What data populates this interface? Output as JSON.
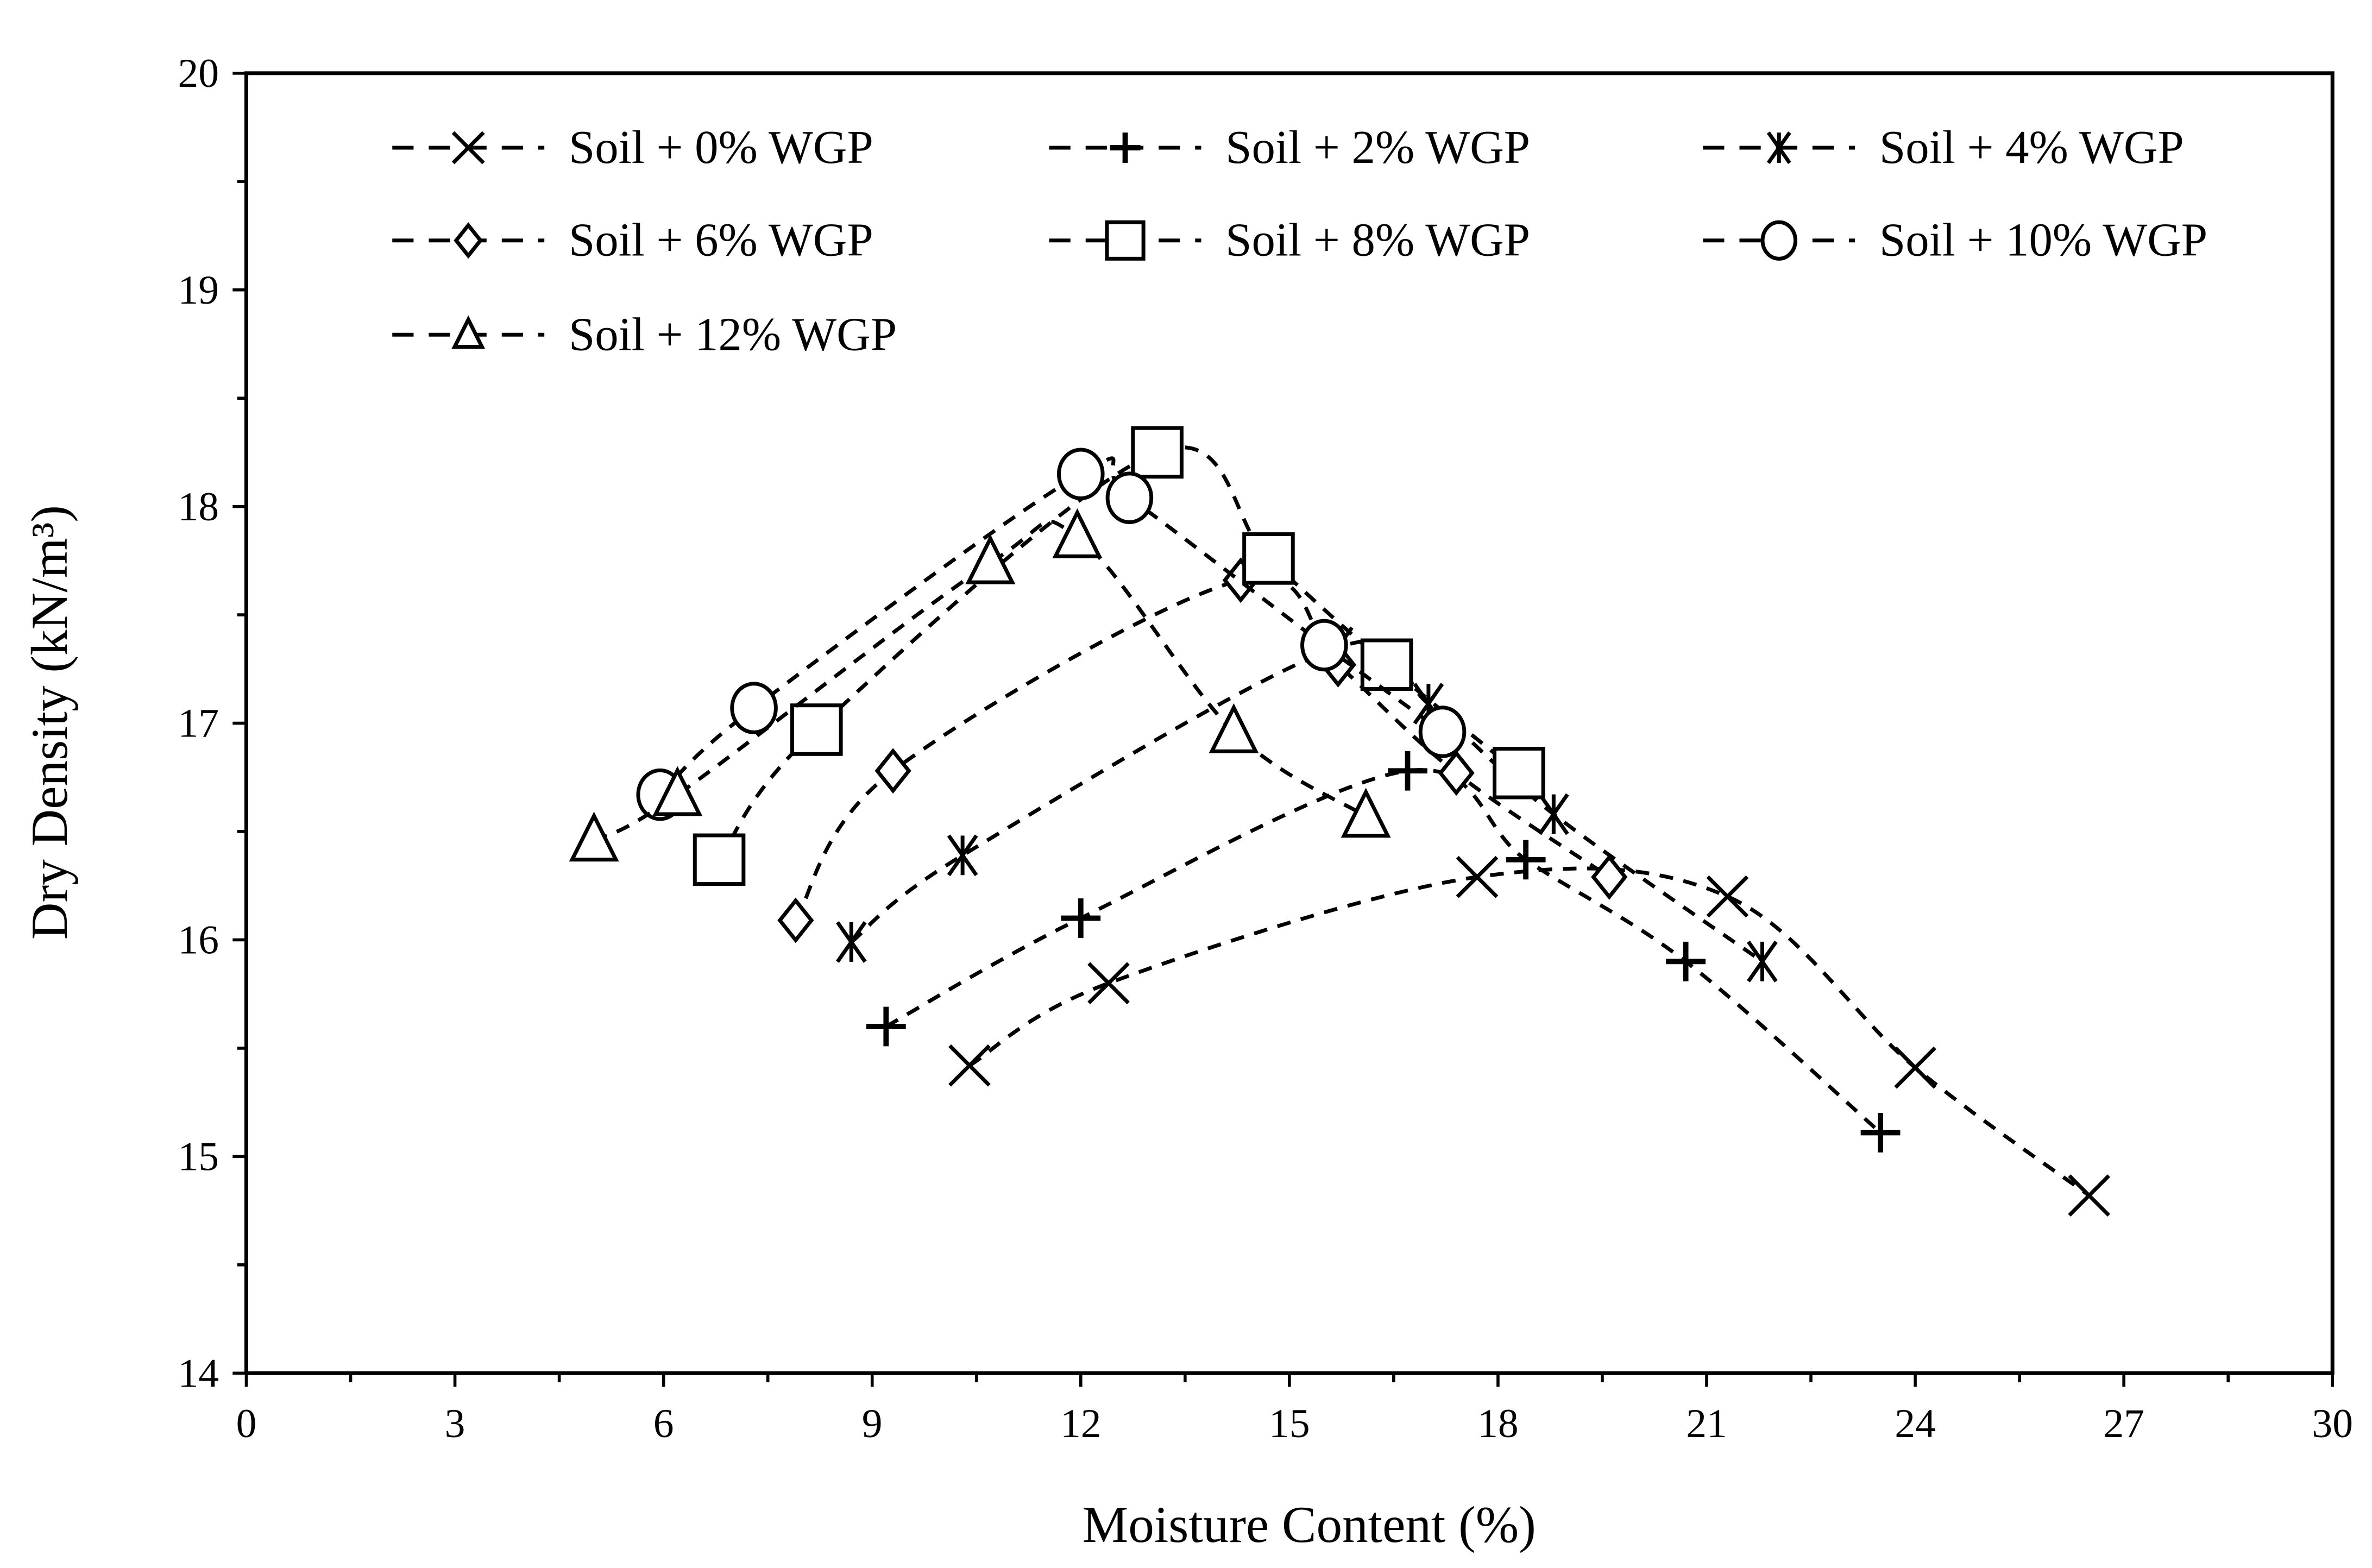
{
  "chart_data": {
    "type": "scatter",
    "xlabel": "Moisture Content (%)",
    "ylabel": "Dry Density (kN/m³)",
    "xlim": [
      0,
      30
    ],
    "ylim": [
      14,
      20
    ],
    "xticks": [
      0,
      3,
      6,
      9,
      12,
      15,
      18,
      21,
      24,
      27,
      30
    ],
    "yticks": [
      14,
      15,
      16,
      17,
      18,
      19,
      20
    ],
    "grid": false,
    "legend_position": "top",
    "line_style": "dashed-smooth",
    "series": [
      {
        "name": "Soil + 0% WGP",
        "marker": "x",
        "x": [
          10.4,
          12.4,
          17.7,
          21.3,
          24.0,
          26.5
        ],
        "y": [
          15.42,
          15.8,
          16.29,
          16.2,
          15.41,
          14.82
        ]
      },
      {
        "name": "Soil + 2% WGP",
        "marker": "plus",
        "x": [
          9.2,
          12.0,
          16.7,
          18.4,
          20.7,
          23.5
        ],
        "y": [
          15.6,
          16.1,
          16.78,
          16.37,
          15.9,
          15.11
        ]
      },
      {
        "name": "Soil + 4% WGP",
        "marker": "star",
        "x": [
          8.7,
          10.3,
          15.7,
          17.0,
          18.8,
          21.8
        ],
        "y": [
          15.99,
          16.39,
          17.35,
          17.09,
          16.58,
          15.9
        ]
      },
      {
        "name": "Soil + 6% WGP",
        "marker": "diamond",
        "x": [
          7.9,
          9.3,
          14.3,
          15.7,
          17.4,
          19.6
        ],
        "y": [
          16.09,
          16.78,
          17.66,
          17.27,
          16.77,
          16.29
        ]
      },
      {
        "name": "Soil + 8% WGP",
        "marker": "square",
        "x": [
          6.8,
          8.2,
          13.1,
          14.7,
          16.4,
          18.3
        ],
        "y": [
          16.37,
          16.97,
          18.25,
          17.76,
          17.27,
          16.77
        ]
      },
      {
        "name": "Soil + 10% WGP",
        "marker": "circle",
        "x": [
          5.95,
          7.3,
          12.0,
          12.7,
          15.5,
          17.2
        ],
        "y": [
          16.67,
          17.07,
          18.15,
          18.04,
          17.36,
          16.96
        ]
      },
      {
        "name": "Soil + 12% WGP",
        "marker": "triangle",
        "x": [
          5.0,
          6.2,
          10.7,
          11.95,
          14.2,
          16.1
        ],
        "y": [
          16.46,
          16.67,
          17.74,
          17.86,
          16.96,
          16.57
        ]
      }
    ]
  }
}
